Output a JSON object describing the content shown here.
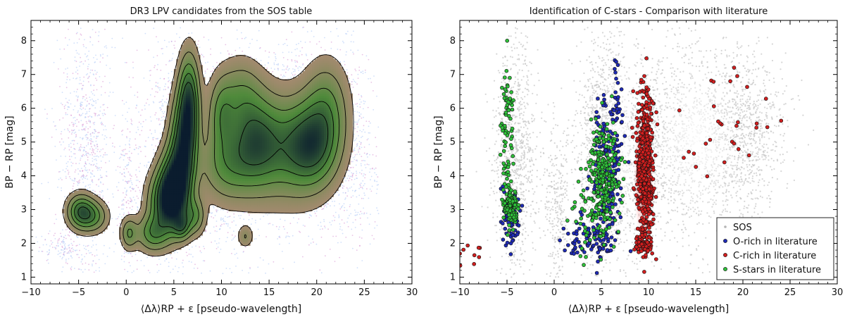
{
  "chart_data": [
    {
      "type": "scatter",
      "title": "DR3 LPV candidates from the SOS table",
      "xlabel": "⟨Δλ⟩RP + ε [pseudo-wavelength]",
      "ylabel": "BP − RP [mag]",
      "xlim": [
        -10,
        30
      ],
      "ylim": [
        0.8,
        8.6
      ],
      "xticks": [
        "−10",
        "−5",
        "0",
        "5",
        "10",
        "15",
        "20",
        "25",
        "30"
      ],
      "yticks": [
        "1",
        "2",
        "3",
        "4",
        "5",
        "6",
        "7",
        "8"
      ],
      "grid": false,
      "style": "density-contours",
      "colors": {
        "points_low": "#a9c4f5",
        "points_mid": "#d58fd0",
        "density_low": "#b58a7a",
        "density_mid": "#4f8a3b",
        "density_high": "#0b1c2e",
        "contour": "#000000"
      },
      "density_clumps": [
        {
          "x": -4.8,
          "y": 2.95,
          "sx": 0.9,
          "sy": 0.32,
          "w": 0.75
        },
        {
          "x": -3.5,
          "y": 2.8,
          "sx": 1.0,
          "sy": 0.3,
          "w": 0.5
        },
        {
          "x": 0.3,
          "y": 2.3,
          "sx": 0.55,
          "sy": 0.3,
          "w": 0.45
        },
        {
          "x": 2.8,
          "y": 2.3,
          "sx": 1.1,
          "sy": 0.35,
          "w": 0.55
        },
        {
          "x": 4.2,
          "y": 3.2,
          "sx": 1.2,
          "sy": 0.6,
          "w": 0.9
        },
        {
          "x": 5.0,
          "y": 3.7,
          "sx": 1.0,
          "sy": 0.7,
          "w": 1.0
        },
        {
          "x": 6.0,
          "y": 4.8,
          "sx": 0.9,
          "sy": 1.0,
          "w": 1.0
        },
        {
          "x": 6.6,
          "y": 6.2,
          "sx": 0.7,
          "sy": 0.9,
          "w": 0.9
        },
        {
          "x": 5.8,
          "y": 2.5,
          "sx": 0.6,
          "sy": 0.25,
          "w": 0.55
        },
        {
          "x": 7.2,
          "y": 2.8,
          "sx": 0.7,
          "sy": 0.35,
          "w": 0.45
        },
        {
          "x": 10.0,
          "y": 5.8,
          "sx": 0.9,
          "sy": 0.7,
          "w": 0.45
        },
        {
          "x": 10.5,
          "y": 4.3,
          "sx": 1.8,
          "sy": 0.7,
          "w": 0.45
        },
        {
          "x": 13.5,
          "y": 5.0,
          "sx": 1.8,
          "sy": 0.9,
          "w": 0.75
        },
        {
          "x": 17.0,
          "y": 4.8,
          "sx": 2.5,
          "sy": 1.0,
          "w": 0.5
        },
        {
          "x": 19.5,
          "y": 4.9,
          "sx": 1.8,
          "sy": 0.8,
          "w": 0.72
        },
        {
          "x": 21.0,
          "y": 6.0,
          "sx": 1.5,
          "sy": 0.9,
          "w": 0.45
        },
        {
          "x": 12.0,
          "y": 6.4,
          "sx": 1.5,
          "sy": 0.7,
          "w": 0.35
        },
        {
          "x": 12.5,
          "y": 2.2,
          "sx": 0.5,
          "sy": 0.2,
          "w": 0.25
        }
      ],
      "contour_levels": [
        0.1,
        0.25,
        0.45,
        0.65,
        0.85
      ]
    },
    {
      "type": "scatter",
      "title": "Identification of C-stars - Comparison with literature",
      "xlabel": "⟨Δλ⟩RP + ε [pseudo-wavelength]",
      "ylabel": "BP − RP [mag]",
      "xlim": [
        -10,
        30
      ],
      "ylim": [
        0.8,
        8.6
      ],
      "xticks": [
        "−10",
        "−5",
        "0",
        "5",
        "10",
        "15",
        "20",
        "25",
        "30"
      ],
      "yticks": [
        "1",
        "2",
        "3",
        "4",
        "5",
        "6",
        "7",
        "8"
      ],
      "grid": false,
      "legend": {
        "position": "lower-right",
        "entries": [
          "SOS",
          "O-rich in literature",
          "C-rich in literature",
          "S-stars in literature"
        ]
      },
      "series": [
        {
          "name": "SOS",
          "color": "#c8c8c8",
          "clusters": [
            {
              "x": -4.2,
              "y": 4.5,
              "sx": 1.2,
              "sy": 1.8,
              "n": 900
            },
            {
              "x": 0.3,
              "y": 3.0,
              "sx": 0.7,
              "sy": 1.4,
              "n": 300
            },
            {
              "x": 5.5,
              "y": 4.5,
              "sx": 1.6,
              "sy": 1.7,
              "n": 1500
            },
            {
              "x": 9.5,
              "y": 4.3,
              "sx": 1.0,
              "sy": 1.5,
              "n": 500
            },
            {
              "x": 14.0,
              "y": 5.0,
              "sx": 2.8,
              "sy": 1.4,
              "n": 1100
            },
            {
              "x": 20.0,
              "y": 5.2,
              "sx": 2.2,
              "sy": 1.3,
              "n": 900
            }
          ]
        },
        {
          "name": "O-rich in literature",
          "color": "#1f2bb5",
          "clusters": [
            {
              "x": -4.5,
              "y": 2.7,
              "sx": 0.5,
              "sy": 0.45,
              "n": 70
            },
            {
              "x": 5.5,
              "y": 4.2,
              "sx": 0.8,
              "sy": 1.1,
              "n": 180
            },
            {
              "x": 4.2,
              "y": 2.1,
              "sx": 1.6,
              "sy": 0.3,
              "n": 80
            },
            {
              "x": 6.5,
              "y": 5.5,
              "sx": 0.3,
              "sy": 1.0,
              "n": 40
            }
          ]
        },
        {
          "name": "C-rich in literature",
          "color": "#d21f1f",
          "clusters": [
            {
              "x": 9.6,
              "y": 4.2,
              "sx": 0.45,
              "sy": 1.1,
              "n": 520
            },
            {
              "x": 9.5,
              "y": 2.0,
              "sx": 0.45,
              "sy": 0.18,
              "n": 70
            },
            {
              "x": 18.0,
              "y": 5.5,
              "sx": 3.5,
              "sy": 1.0,
              "n": 30
            },
            {
              "x": -9.0,
              "y": 1.75,
              "sx": 0.7,
              "sy": 0.15,
              "n": 10
            }
          ]
        },
        {
          "name": "S-stars in literature",
          "color": "#2fbf3a",
          "clusters": [
            {
              "x": -4.6,
              "y": 3.1,
              "sx": 0.35,
              "sy": 0.25,
              "n": 140
            },
            {
              "x": -5.0,
              "y": 5.2,
              "sx": 0.35,
              "sy": 1.1,
              "n": 80
            },
            {
              "x": 5.2,
              "y": 4.0,
              "sx": 0.8,
              "sy": 0.8,
              "n": 220
            },
            {
              "x": 4.3,
              "y": 2.8,
              "sx": 1.2,
              "sy": 0.5,
              "n": 60
            }
          ]
        }
      ]
    }
  ]
}
